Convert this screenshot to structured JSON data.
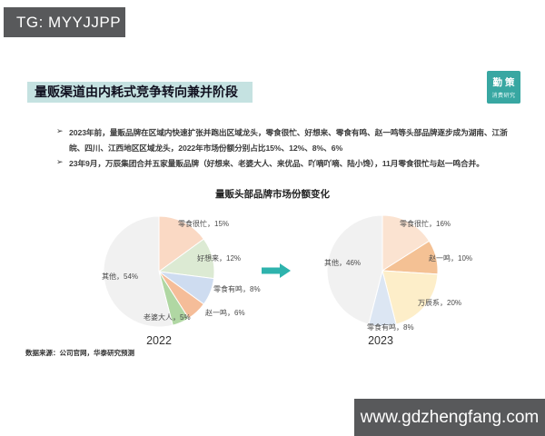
{
  "header": {
    "tg_label": "TG: MYYJJPP"
  },
  "logo": {
    "line1": "勤策",
    "line2": "消费研究"
  },
  "slide": {
    "title": "量贩渠道由内耗式竞争转向兼并阶段",
    "bullets": [
      {
        "marker": "➢",
        "lines": [
          "2023年前，量贩品牌在区域内快速扩张并跑出区域龙头，零食很忙、好想来、零食有鸣、赵一鸣等头部品牌逐步成为湖南、江浙",
          "皖、四川、江西地区区域龙头，2022年市场份额分别占比15%、12%、8%、6%"
        ]
      },
      {
        "marker": "➢",
        "lines": [
          "23年9月，万辰集团合并五家量贩品牌（好想来、老婆大人、来优品、吖嘀吖嘀、陆小馋），11月零食很忙与赵一鸣合并。"
        ]
      }
    ],
    "chart_title": "量贩头部品牌市场份额变化",
    "source_note": "数据来源：公司官网，华泰研究预测"
  },
  "chart_data": [
    {
      "type": "pie",
      "title": "2022",
      "unit": "%",
      "series": [
        {
          "name": "零食很忙",
          "value": 15,
          "color": "#fad9c4",
          "label": "零食很忙，15%"
        },
        {
          "name": "好想来",
          "value": 12,
          "color": "#dcead3",
          "label": "好想来，12%"
        },
        {
          "name": "零食有鸣",
          "value": 8,
          "color": "#cedcf0",
          "label": "零食有鸣，8%"
        },
        {
          "name": "赵一鸣",
          "value": 6,
          "color": "#f5bd99",
          "label": "赵一鸣，6%"
        },
        {
          "name": "老婆大人",
          "value": 5,
          "color": "#b0d7a3",
          "label": "老婆大人，5%"
        },
        {
          "name": "其他",
          "value": 54,
          "color": "#f1f1f1",
          "label": "其他，54%"
        }
      ]
    },
    {
      "type": "pie",
      "title": "2023",
      "unit": "%",
      "series": [
        {
          "name": "零食很忙",
          "value": 16,
          "color": "#fbe3d1",
          "label": "零食很忙，16%"
        },
        {
          "name": "赵一鸣",
          "value": 10,
          "color": "#f4c194",
          "label": "赵一鸣，10%"
        },
        {
          "name": "万辰系",
          "value": 20,
          "color": "#fdeec9",
          "label": "万辰系，20%"
        },
        {
          "name": "零食有鸣",
          "value": 8,
          "color": "#dce6f3",
          "label": "零食有鸣，8%"
        },
        {
          "name": "其他",
          "value": 46,
          "color": "#f1f1f1",
          "label": "其他，46%"
        }
      ]
    }
  ],
  "footer": {
    "url": "www.gdzhengfang.com"
  },
  "colors": {
    "accent_teal": "#2eb3ad",
    "title_bar_bg": "#c5e2e1",
    "dark_bar_bg": "#58595b",
    "logo_bg": "#38a7a2"
  }
}
